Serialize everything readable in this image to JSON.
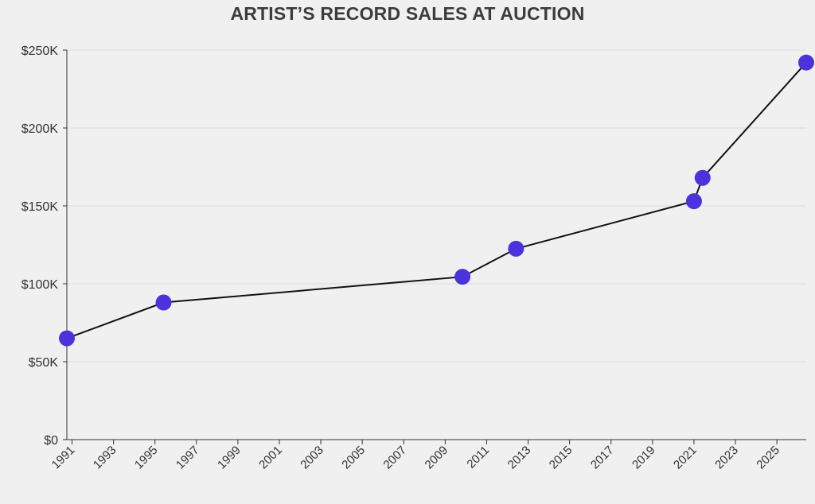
{
  "chart_data": {
    "type": "scatter",
    "title": "ARTIST’S RECORD SALES AT AUCTION",
    "xlabel": "",
    "ylabel": "",
    "ylim": [
      0,
      250000
    ],
    "xlim": [
      "1990-10",
      "2026-06"
    ],
    "grid": true,
    "legend": "none",
    "line_color": "#111111",
    "marker_color": "#4a33dc",
    "x_tick_labels": [
      "1991",
      "1993",
      "1995",
      "1997",
      "1999",
      "2001",
      "2003",
      "2005",
      "2007",
      "2009",
      "2011",
      "2013",
      "2015",
      "2017",
      "2019",
      "2021",
      "2023",
      "2025"
    ],
    "y_tick_values": [
      0,
      50000,
      100000,
      150000,
      200000,
      250000
    ],
    "y_tick_labels": [
      "$0",
      "$50K",
      "$100K",
      "$150K",
      "$200K",
      "$250K"
    ],
    "series": [
      {
        "x": [
          "1990-10",
          "1995-06",
          "2009-11",
          "2012-06",
          "2021-01",
          "2021-06",
          "2026-06"
        ],
        "y": [
          65000,
          88000,
          104500,
          122500,
          153000,
          168000,
          242000
        ]
      }
    ]
  }
}
